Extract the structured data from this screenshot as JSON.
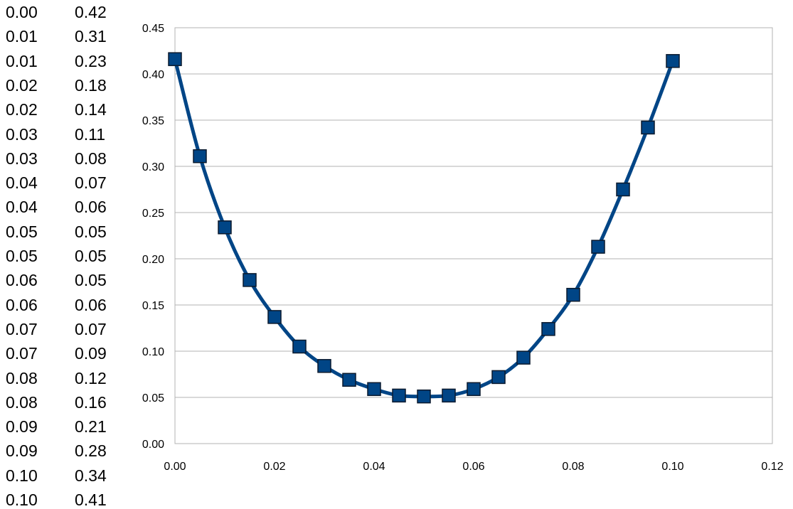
{
  "table": {
    "rows": [
      [
        "0.00",
        "0.42"
      ],
      [
        "0.01",
        "0.31"
      ],
      [
        "0.01",
        "0.23"
      ],
      [
        "0.02",
        "0.18"
      ],
      [
        "0.02",
        "0.14"
      ],
      [
        "0.03",
        "0.11"
      ],
      [
        "0.03",
        "0.08"
      ],
      [
        "0.04",
        "0.07"
      ],
      [
        "0.04",
        "0.06"
      ],
      [
        "0.05",
        "0.05"
      ],
      [
        "0.05",
        "0.05"
      ],
      [
        "0.06",
        "0.05"
      ],
      [
        "0.06",
        "0.06"
      ],
      [
        "0.07",
        "0.07"
      ],
      [
        "0.07",
        "0.09"
      ],
      [
        "0.08",
        "0.12"
      ],
      [
        "0.08",
        "0.16"
      ],
      [
        "0.09",
        "0.21"
      ],
      [
        "0.09",
        "0.28"
      ],
      [
        "0.10",
        "0.34"
      ],
      [
        "0.10",
        "0.41"
      ]
    ]
  },
  "chart_data": {
    "type": "line",
    "title": "",
    "xlabel": "",
    "ylabel": "",
    "xlim": [
      0,
      0.12
    ],
    "ylim": [
      0,
      0.45
    ],
    "x_ticks": [
      "0.00",
      "0.02",
      "0.04",
      "0.06",
      "0.08",
      "0.10",
      "0.12"
    ],
    "y_ticks": [
      "0.00",
      "0.05",
      "0.10",
      "0.15",
      "0.20",
      "0.25",
      "0.30",
      "0.35",
      "0.40",
      "0.45"
    ],
    "grid": "horizontal",
    "legend": "none",
    "smooth": true,
    "marker": "square",
    "line_color": "#004586",
    "marker_color": "#004586",
    "series": [
      {
        "x": [
          0.0,
          0.005,
          0.01,
          0.015,
          0.02,
          0.025,
          0.03,
          0.035,
          0.04,
          0.045,
          0.05,
          0.055,
          0.06,
          0.065,
          0.07,
          0.075,
          0.08,
          0.085,
          0.09,
          0.095,
          0.1
        ],
        "y": [
          0.416,
          0.311,
          0.234,
          0.177,
          0.137,
          0.105,
          0.084,
          0.069,
          0.059,
          0.052,
          0.051,
          0.052,
          0.059,
          0.072,
          0.093,
          0.124,
          0.161,
          0.213,
          0.275,
          0.342,
          0.414
        ]
      }
    ]
  }
}
